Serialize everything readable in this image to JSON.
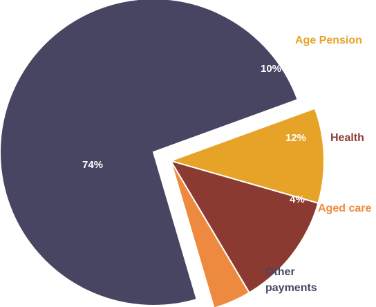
{
  "chart_data": {
    "type": "pie",
    "title": "",
    "unit": "%",
    "slices": [
      {
        "label": "Age Pension",
        "value": 10,
        "value_label": "10%",
        "color": "#E6A328",
        "label_color": "#E6A328",
        "exploded": true
      },
      {
        "label": "Health",
        "value": 12,
        "value_label": "12%",
        "color": "#8B3A32",
        "label_color": "#8B3A32",
        "exploded": true
      },
      {
        "label": "Aged care",
        "value": 4,
        "value_label": "4%",
        "color": "#EE8A3F",
        "label_color": "#EE8A3F",
        "exploded": true
      },
      {
        "label": "Other payments",
        "label_lines": [
          "Other",
          "payments"
        ],
        "value": 74,
        "value_label": "74%",
        "color": "#484563",
        "label_color": "#484563",
        "exploded": false
      }
    ],
    "legend": "none",
    "labels": "outside (category), inside (percentage)"
  }
}
